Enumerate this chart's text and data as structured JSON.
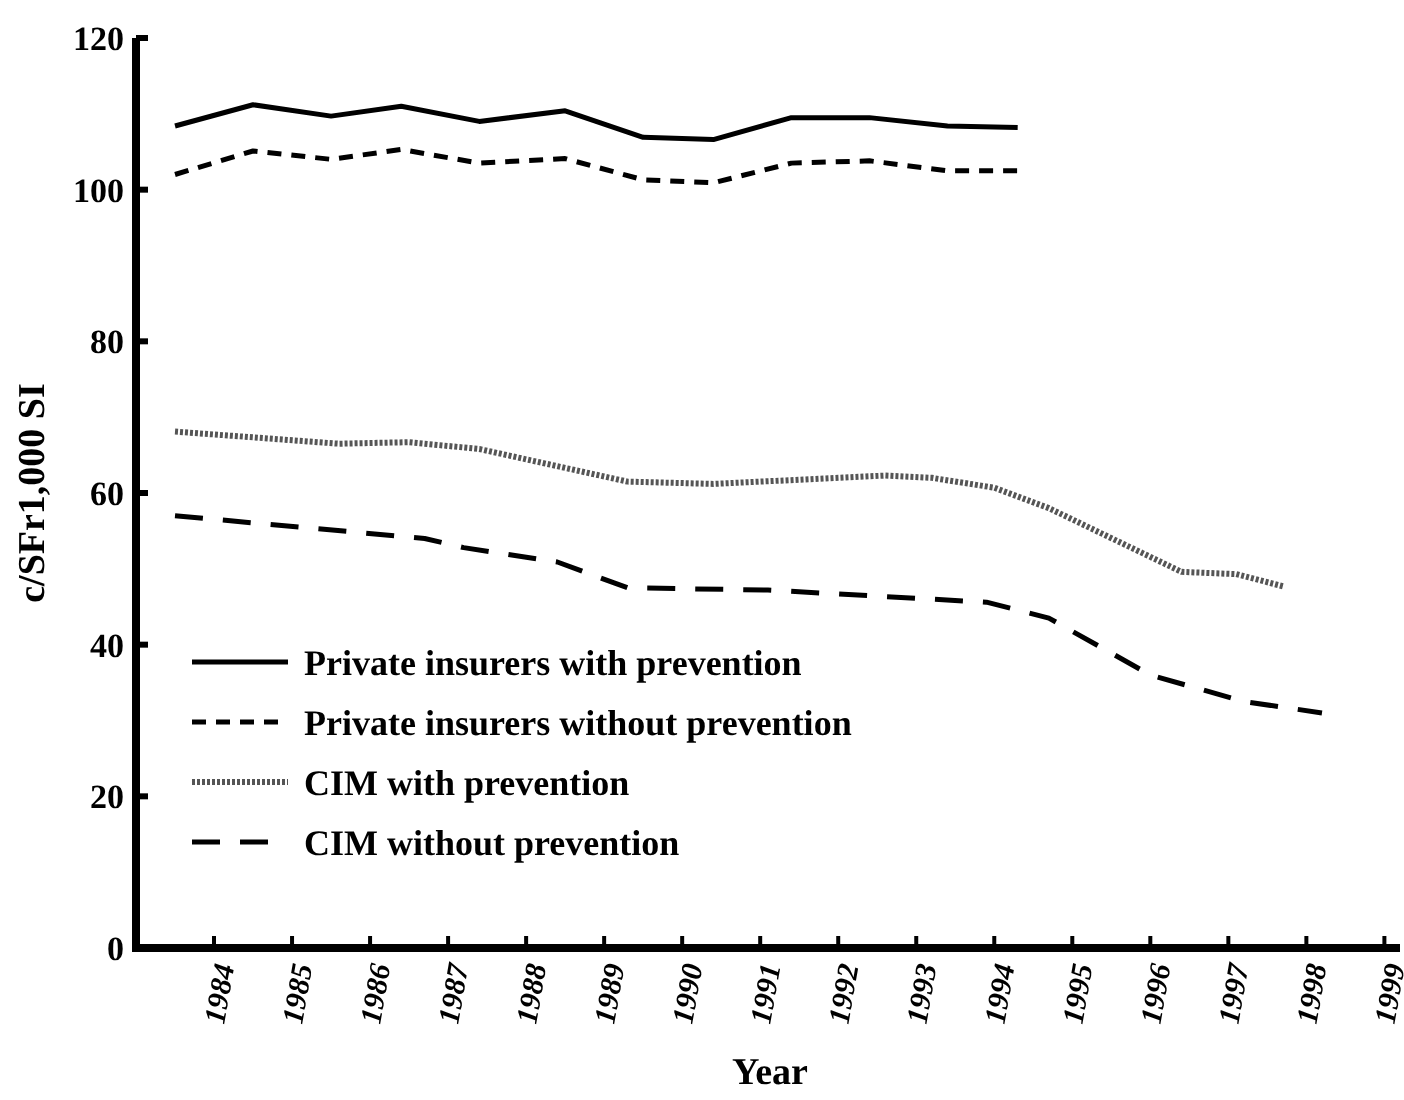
{
  "chart_data": {
    "type": "line",
    "xlabel": "Year",
    "ylabel": "c/SFr1,000 SI",
    "xlim": [
      1983,
      1999.2
    ],
    "xticks": [
      1984,
      1985,
      1986,
      1987,
      1988,
      1989,
      1990,
      1991,
      1992,
      1993,
      1994,
      1995,
      1996,
      1997,
      1998,
      1999
    ],
    "ylim": [
      0,
      120
    ],
    "yticks": [
      0,
      20,
      40,
      60,
      80,
      100,
      120
    ],
    "grid": false,
    "legend": "bottom left",
    "marker": "none",
    "series": [
      {
        "name": "Private insurers with prevention",
        "color": "#000000",
        "line_style": "solid",
        "x": [
          1983.5,
          1984.5,
          1985.5,
          1986.4,
          1987.4,
          1988.5,
          1989.5,
          1990.4,
          1991.4,
          1992.4,
          1993.4,
          1994.3
        ],
        "values": [
          108.4,
          111.2,
          109.7,
          111.0,
          109.0,
          110.4,
          106.9,
          106.6,
          109.5,
          109.5,
          108.4,
          108.2
        ]
      },
      {
        "name": "Private insurers without prevention",
        "color": "#000000",
        "line_style": "dashed",
        "x": [
          1983.5,
          1984.5,
          1985.5,
          1986.4,
          1987.4,
          1988.5,
          1989.5,
          1990.4,
          1991.4,
          1992.4,
          1993.4,
          1994.3
        ],
        "values": [
          102.0,
          105.1,
          104.0,
          105.3,
          103.5,
          104.1,
          101.3,
          100.9,
          103.5,
          103.8,
          102.5,
          102.5
        ]
      },
      {
        "name": "CIM with prevention",
        "color": "#555555",
        "line_style": "dotted",
        "x": [
          1983.5,
          1985.6,
          1986.5,
          1987.4,
          1989.3,
          1990.4,
          1992.6,
          1993.2,
          1994.0,
          1994.7,
          1996.4,
          1997.1,
          1997.7
        ],
        "values": [
          68.1,
          66.5,
          66.7,
          65.8,
          61.5,
          61.2,
          62.3,
          62.0,
          60.7,
          58.0,
          49.6,
          49.3,
          47.7
        ]
      },
      {
        "name": "CIM without prevention",
        "color": "#000000",
        "line_style": "dashed",
        "x": [
          1983.5,
          1986.7,
          1987.2,
          1988.4,
          1989.3,
          1991.1,
          1993.9,
          1994.4,
          1994.7,
          1996.0,
          1997.2,
          1998.2
        ],
        "values": [
          57.0,
          54.0,
          52.8,
          50.9,
          47.5,
          47.2,
          45.6,
          44.3,
          43.5,
          36.0,
          32.5,
          31.0
        ]
      }
    ]
  }
}
